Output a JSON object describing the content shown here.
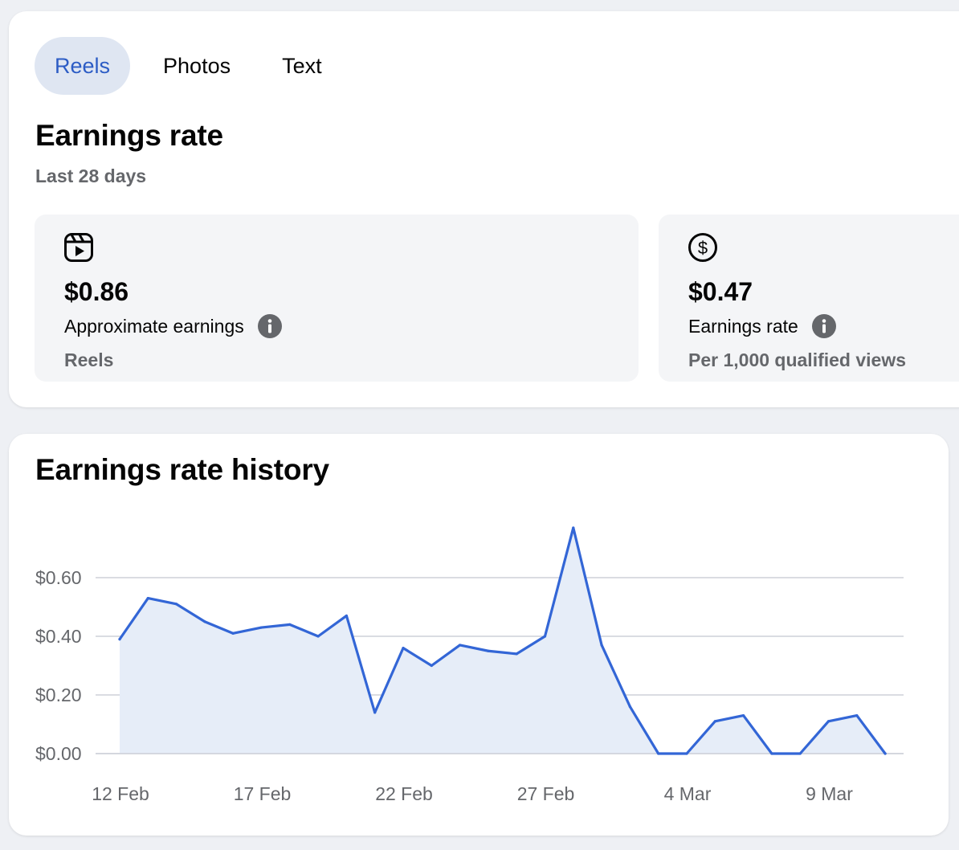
{
  "tabs": [
    {
      "label": "Reels",
      "active": true
    },
    {
      "label": "Photos",
      "active": false
    },
    {
      "label": "Text",
      "active": false
    }
  ],
  "summary": {
    "title": "Earnings rate",
    "subtitle": "Last 28 days"
  },
  "metrics": [
    {
      "icon": "reels-icon",
      "value": "$0.86",
      "label": "Approximate earnings",
      "sub": "Reels"
    },
    {
      "icon": "dollar-circle-icon",
      "value": "$0.47",
      "label": "Earnings rate",
      "sub": "Per 1,000 qualified views"
    }
  ],
  "history": {
    "title": "Earnings rate history"
  },
  "colors": {
    "accent": "#2c5cc5",
    "line": "#3366d6",
    "area": "#e6edf8",
    "grid": "#cdd1d9",
    "tab_active_bg": "#dfe6f2",
    "muted": "#65676b"
  },
  "chart_data": {
    "type": "area",
    "x": [
      "12 Feb",
      "13 Feb",
      "14 Feb",
      "15 Feb",
      "16 Feb",
      "17 Feb",
      "18 Feb",
      "19 Feb",
      "20 Feb",
      "21 Feb",
      "22 Feb",
      "23 Feb",
      "24 Feb",
      "25 Feb",
      "26 Feb",
      "27 Feb",
      "28 Feb",
      "1 Mar",
      "2 Mar",
      "3 Mar",
      "4 Mar",
      "5 Mar",
      "6 Mar",
      "7 Mar",
      "8 Mar",
      "9 Mar",
      "10 Mar",
      "11 Mar"
    ],
    "values": [
      0.39,
      0.53,
      0.51,
      0.45,
      0.41,
      0.43,
      0.44,
      0.4,
      0.47,
      0.14,
      0.36,
      0.3,
      0.37,
      0.35,
      0.34,
      0.4,
      0.77,
      0.37,
      0.16,
      0.0,
      0.0,
      0.11,
      0.13,
      0.0,
      0.0,
      0.11,
      0.13,
      0.0
    ],
    "x_tick_labels": [
      "12 Feb",
      "17 Feb",
      "22 Feb",
      "27 Feb",
      "4 Mar",
      "9 Mar"
    ],
    "x_tick_indices": [
      0,
      5,
      10,
      15,
      20,
      25
    ],
    "y_ticks": [
      0,
      0.2,
      0.4,
      0.6
    ],
    "y_tick_labels": [
      "$0.00",
      "$0.20",
      "$0.40",
      "$0.60"
    ],
    "ylim": [
      0,
      0.8
    ],
    "grid": true,
    "legend": "none"
  }
}
